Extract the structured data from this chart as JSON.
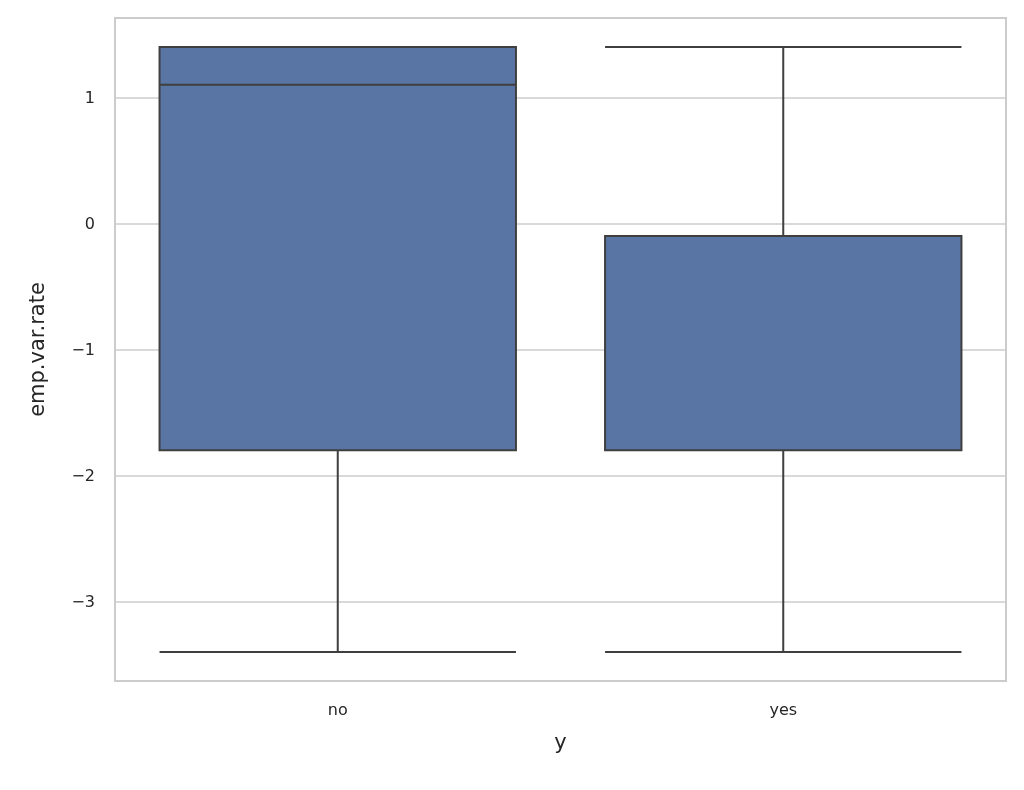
{
  "chart_data": {
    "type": "box",
    "xlabel": "y",
    "ylabel": "emp.var.rate",
    "categories": [
      "no",
      "yes"
    ],
    "boxes": [
      {
        "low": -3.4,
        "q1": -1.8,
        "median": 1.1,
        "q3": 1.4,
        "high": 1.4
      },
      {
        "low": -3.4,
        "q1": -1.8,
        "median": -1.8,
        "q3": -0.1,
        "high": 1.4
      }
    ],
    "color": "#5975a4",
    "ylim": [
      -3.63,
      1.63
    ],
    "yticks": [
      {
        "value": -3,
        "label": "−3"
      },
      {
        "value": -2,
        "label": "−2"
      },
      {
        "value": -1,
        "label": "−1"
      },
      0,
      1
    ],
    "grid": "y"
  }
}
